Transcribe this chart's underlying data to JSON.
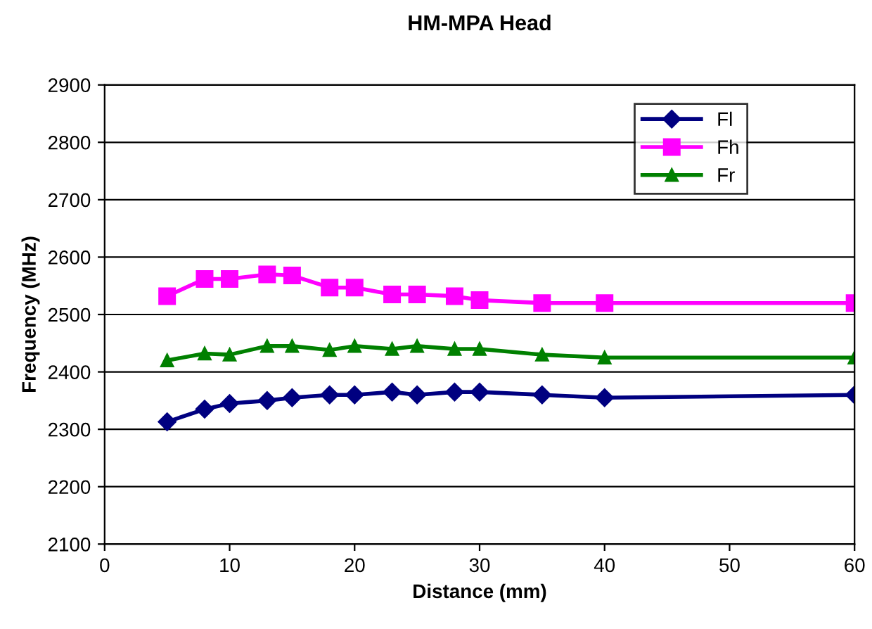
{
  "chart_data": {
    "type": "line",
    "title": "HM-MPA Head",
    "xlabel": "Distance (mm)",
    "ylabel": "Frequency (MHz)",
    "x": [
      5,
      8,
      10,
      13,
      15,
      18,
      20,
      23,
      25,
      28,
      30,
      35,
      40,
      60
    ],
    "series": [
      {
        "name": "Fl",
        "color": "#000080",
        "marker": "diamond",
        "values": [
          2313,
          2335,
          2345,
          2350,
          2355,
          2360,
          2360,
          2365,
          2360,
          2365,
          2365,
          2360,
          2355,
          2360
        ]
      },
      {
        "name": "Fh",
        "color": "#ff00ff",
        "marker": "square",
        "values": [
          2532,
          2562,
          2562,
          2570,
          2568,
          2547,
          2547,
          2535,
          2535,
          2532,
          2525,
          2520,
          2520,
          2520
        ]
      },
      {
        "name": "Fr",
        "color": "#008000",
        "marker": "triangle",
        "values": [
          2420,
          2432,
          2430,
          2445,
          2445,
          2438,
          2445,
          2440,
          2445,
          2440,
          2440,
          2430,
          2425,
          2425
        ]
      }
    ],
    "xlim": [
      0,
      60
    ],
    "xticks": [
      0,
      10,
      20,
      30,
      40,
      50,
      60
    ],
    "ylim": [
      2100,
      2900
    ],
    "yticks": [
      2100,
      2200,
      2300,
      2400,
      2500,
      2600,
      2700,
      2800,
      2900
    ],
    "grid": "y",
    "legend": "top right"
  }
}
